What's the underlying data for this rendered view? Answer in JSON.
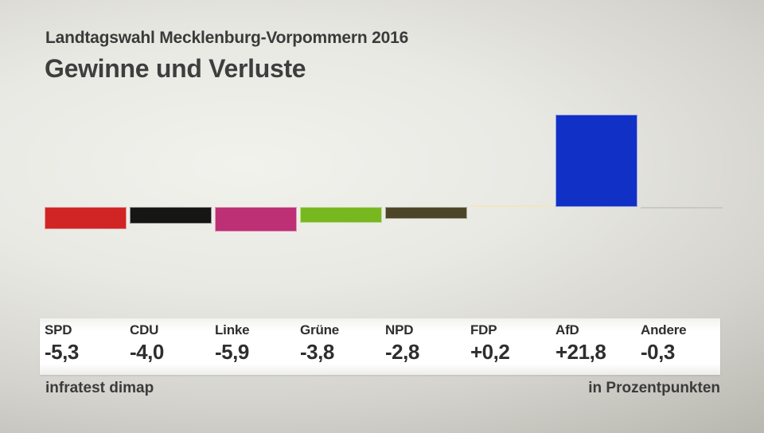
{
  "title": {
    "subtitle": "Landtagswahl Mecklenburg-Vorpommern 2016",
    "heading": "Gewinne und Verluste"
  },
  "footer": {
    "source": "infratest dimap",
    "unit": "in Prozentpunkten"
  },
  "chart_data": {
    "type": "bar",
    "title": "Gewinne und Verluste",
    "subtitle": "Landtagswahl Mecklenburg-Vorpommern 2016",
    "unit": "Prozentpunkte",
    "categories": [
      "SPD",
      "CDU",
      "Linke",
      "Grüne",
      "NPD",
      "FDP",
      "AfD",
      "Andere"
    ],
    "values": [
      -5.3,
      -4.0,
      -5.9,
      -3.8,
      -2.8,
      0.2,
      21.8,
      -0.3
    ],
    "display_values": [
      "-5,3",
      "-4,0",
      "-5,9",
      "-3,8",
      "-2,8",
      "+0,2",
      "+21,8",
      "-0,3"
    ],
    "colors": [
      "#d02524",
      "#161615",
      "#be3075",
      "#77b821",
      "#4d4527",
      "#eccd7d",
      "#1130c6",
      "#8d8d96"
    ],
    "ylim": [
      -8,
      24
    ],
    "baseline": 0,
    "grid": false,
    "legend_position": "bottom-table"
  }
}
